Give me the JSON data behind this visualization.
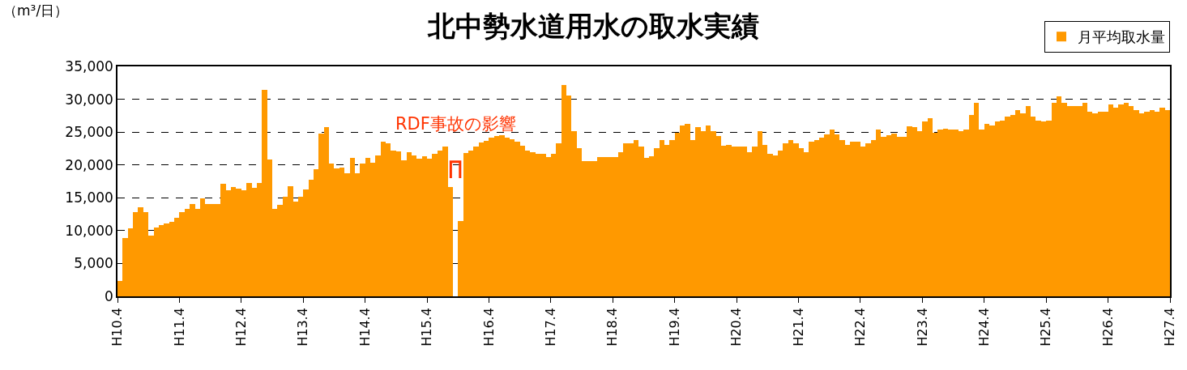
{
  "chart_data": {
    "type": "bar",
    "title": "北中勢水道用水の取水実績",
    "ylabel": "（m³/日）",
    "annotations": [
      "RDF事故の影響"
    ],
    "categories": [
      "H10.4",
      null,
      null,
      null,
      null,
      null,
      null,
      null,
      null,
      null,
      null,
      null,
      "H11.4",
      null,
      null,
      null,
      null,
      null,
      null,
      null,
      null,
      null,
      null,
      null,
      "H12.4",
      null,
      null,
      null,
      null,
      null,
      null,
      null,
      null,
      null,
      null,
      null,
      "H13.4",
      null,
      null,
      null,
      null,
      null,
      null,
      null,
      null,
      null,
      null,
      null,
      "H14.4",
      null,
      null,
      null,
      null,
      null,
      null,
      null,
      null,
      null,
      null,
      null,
      "H15.4",
      null,
      null,
      null,
      null,
      null,
      null,
      null,
      null,
      null,
      null,
      null,
      "H16.4",
      null,
      null,
      null,
      null,
      null,
      null,
      null,
      null,
      null,
      null,
      null,
      "H17.4",
      null,
      null,
      null,
      null,
      null,
      null,
      null,
      null,
      null,
      null,
      null,
      "H18.4",
      null,
      null,
      null,
      null,
      null,
      null,
      null,
      null,
      null,
      null,
      null,
      "H19.4",
      null,
      null,
      null,
      null,
      null,
      null,
      null,
      null,
      null,
      null,
      null,
      "H20.4",
      null,
      null,
      null,
      null,
      null,
      null,
      null,
      null,
      null,
      null,
      null,
      "H21.4",
      null,
      null,
      null,
      null,
      null,
      null,
      null,
      null,
      null,
      null,
      null,
      "H22.4",
      null,
      null,
      null,
      null,
      null,
      null,
      null,
      null,
      null,
      null,
      null,
      "H23.4",
      null,
      null,
      null,
      null,
      null,
      null,
      null,
      null,
      null,
      null,
      null,
      "H24.4",
      null,
      null,
      null,
      null,
      null,
      null,
      null,
      null,
      null,
      null,
      null,
      "H25.4",
      null,
      null,
      null,
      null,
      null,
      null,
      null,
      null,
      null,
      null,
      null,
      "H26.4",
      null,
      null,
      null,
      null,
      null,
      null,
      null,
      null,
      null,
      null,
      null,
      "H27.4"
    ],
    "series": [
      {
        "name": "月平均取水量",
        "color": "#ff9900",
        "values": [
          2400,
          8900,
          10300,
          12800,
          13500,
          12800,
          9200,
          10500,
          10800,
          11100,
          11400,
          11900,
          12800,
          13300,
          14100,
          13300,
          14900,
          14100,
          14100,
          14100,
          17100,
          16100,
          16600,
          16400,
          16100,
          17300,
          16500,
          17300,
          31400,
          20800,
          13300,
          13900,
          15200,
          16800,
          14400,
          15200,
          16300,
          17800,
          19300,
          24800,
          25800,
          20200,
          19500,
          19600,
          18700,
          21100,
          18700,
          20200,
          21100,
          20300,
          21400,
          23600,
          23300,
          22200,
          22100,
          20700,
          21900,
          21500,
          20900,
          21300,
          21000,
          21700,
          22200,
          22800,
          16600,
          0,
          11500,
          21800,
          22200,
          22800,
          23400,
          23700,
          24200,
          24400,
          24500,
          24200,
          23900,
          23600,
          22900,
          22200,
          21900,
          21700,
          21700,
          21200,
          21700,
          23300,
          32200,
          30600,
          25200,
          22500,
          20600,
          20600,
          20600,
          21200,
          21200,
          21200,
          21200,
          21900,
          23300,
          23300,
          23800,
          22800,
          21100,
          21300,
          22500,
          23800,
          23100,
          23800,
          24900,
          26000,
          26200,
          23800,
          25700,
          25200,
          26000,
          25200,
          24400,
          22900,
          23100,
          22800,
          22800,
          22800,
          21900,
          22800,
          25200,
          23100,
          21700,
          21400,
          22200,
          23300,
          23800,
          23300,
          22500,
          21900,
          23500,
          23800,
          24100,
          24600,
          25400,
          24600,
          23800,
          23100,
          23500,
          23500,
          22800,
          23300,
          23800,
          25400,
          24300,
          24500,
          24800,
          24300,
          24300,
          25900,
          25700,
          25200,
          26600,
          27100,
          24900,
          25400,
          25500,
          25400,
          25400,
          25200,
          25400,
          27600,
          29400,
          25400,
          26300,
          26000,
          26600,
          26800,
          27400,
          27600,
          28400,
          27900,
          29000,
          27400,
          26800,
          26600,
          26800,
          29400,
          30500,
          29400,
          29000,
          29000,
          29000,
          29400,
          28100,
          27900,
          28100,
          28100,
          29200,
          28700,
          29200,
          29400,
          29000,
          28400,
          27900,
          28100,
          28400,
          28100,
          28700,
          28400,
          null
        ]
      }
    ],
    "ylim": [
      0,
      35000
    ],
    "yticks": [
      0,
      {
        "value": 5000,
        "label": "5,000"
      },
      {
        "value": 10000,
        "label": "10,000"
      },
      {
        "value": 15000,
        "label": "15,000"
      },
      {
        "value": 20000,
        "label": "20,000"
      },
      {
        "value": 25000,
        "label": "25,000"
      },
      {
        "value": 30000,
        "label": "30,000"
      },
      {
        "value": 35000,
        "label": "35,000"
      }
    ],
    "grid": "y",
    "legend": "top right"
  }
}
